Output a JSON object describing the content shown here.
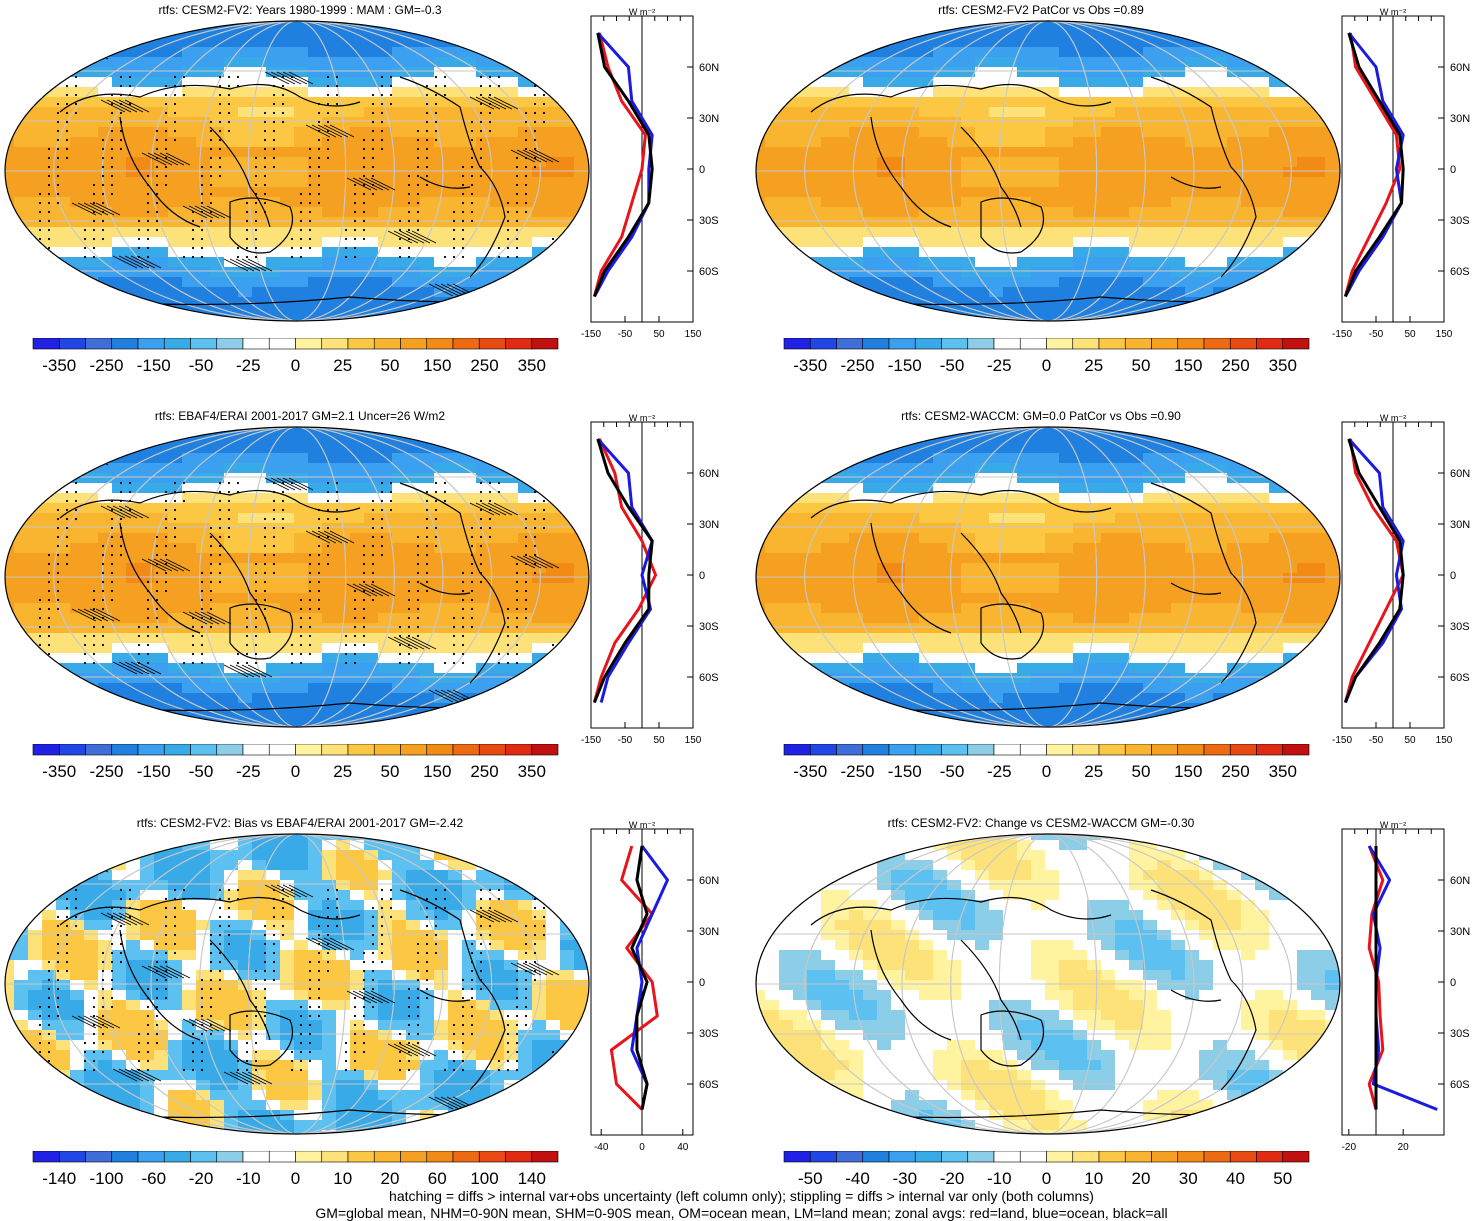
{
  "colors": {
    "red_line": "#e8141b",
    "blue_line": "#1a1ae0",
    "black_line": "#000000",
    "grat": "#c8c8c8"
  },
  "panels": [
    {
      "id": "p1",
      "title": "rtfs: CESM2-FV2: Years 1980-1999 : MAM : GM=-0.3",
      "cbar_labels": [
        "-350",
        "-250",
        "-150",
        "-50",
        "-25",
        "0",
        "25",
        "50",
        "150",
        "250",
        "350"
      ],
      "zonal_xticks": [
        "-150",
        "-50",
        "50",
        "150"
      ],
      "zonal_ylabels": [
        "60N",
        "30N",
        "0",
        "30S",
        "60S"
      ],
      "zonal_unit": "W m⁻²",
      "stipple": true,
      "hatch": true
    },
    {
      "id": "p2",
      "title": "rtfs: CESM2-FV2 PatCor vs Obs =0.89",
      "cbar_labels": [
        "-350",
        "-250",
        "-150",
        "-50",
        "-25",
        "0",
        "25",
        "50",
        "150",
        "250",
        "350"
      ],
      "zonal_xticks": [
        "-150",
        "-50",
        "50",
        "150"
      ],
      "zonal_ylabels": [
        "60N",
        "30N",
        "0",
        "30S",
        "60S"
      ],
      "zonal_unit": "W m⁻²",
      "stipple": false,
      "hatch": false
    },
    {
      "id": "p3",
      "title": "rtfs: EBAF4/ERAI 2001-2017 GM=2.1 Uncer=26 W/m2",
      "cbar_labels": [
        "-350",
        "-250",
        "-150",
        "-50",
        "-25",
        "0",
        "25",
        "50",
        "150",
        "250",
        "350"
      ],
      "zonal_xticks": [
        "-150",
        "-50",
        "50",
        "150"
      ],
      "zonal_ylabels": [
        "60N",
        "30N",
        "0",
        "30S",
        "60S"
      ],
      "zonal_unit": "W m⁻²",
      "stipple": true,
      "hatch": true
    },
    {
      "id": "p4",
      "title": "rtfs: CESM2-WACCM: GM=0.0 PatCor vs Obs =0.90",
      "cbar_labels": [
        "-350",
        "-250",
        "-150",
        "-50",
        "-25",
        "0",
        "25",
        "50",
        "150",
        "250",
        "350"
      ],
      "zonal_xticks": [
        "-150",
        "-50",
        "50",
        "150"
      ],
      "zonal_ylabels": [
        "60N",
        "30N",
        "0",
        "30S",
        "60S"
      ],
      "zonal_unit": "W m⁻²",
      "stipple": false,
      "hatch": false
    },
    {
      "id": "p5",
      "title": "rtfs: CESM2-FV2: Bias vs EBAF4/ERAI 2001-2017 GM=-2.42",
      "cbar_labels": [
        "-140",
        "-100",
        "-60",
        "-20",
        "-10",
        "0",
        "10",
        "20",
        "60",
        "100",
        "140"
      ],
      "zonal_xticks": [
        "-40",
        "0",
        "40"
      ],
      "zonal_ylabels": [
        "60N",
        "30N",
        "0",
        "30S",
        "60S"
      ],
      "zonal_unit": "W m⁻²",
      "stipple": true,
      "hatch": true
    },
    {
      "id": "p6",
      "title": "rtfs: CESM2-FV2: Change vs CESM2-WACCM GM=-0.30",
      "cbar_labels": [
        "-50",
        "-40",
        "-30",
        "-20",
        "-10",
        "0",
        "10",
        "20",
        "30",
        "40",
        "50"
      ],
      "zonal_xticks": [
        "-20",
        "20"
      ],
      "zonal_ylabels": [
        "60N",
        "30N",
        "0",
        "30S",
        "60S"
      ],
      "zonal_unit": "W m⁻²",
      "stipple": false,
      "hatch": false
    }
  ],
  "palette": [
    "#2121e6",
    "#2146e6",
    "#3f6ed8",
    "#1f80e0",
    "#3ba0f0",
    "#38aae8",
    "#5cc0f0",
    "#8ccde8",
    "#ffffff",
    "#ffffff",
    "#fff3a0",
    "#fde27a",
    "#fcc843",
    "#f9b430",
    "#f5a020",
    "#f28a16",
    "#ee6a12",
    "#e84a12",
    "#e02a14",
    "#c01010"
  ],
  "footer": {
    "line1": "hatching = diffs > internal var+obs uncertainty (left column only); stippling = diffs > internal var only (both columns)",
    "line2": "GM=global mean, NHM=0-90N mean, SHM=0-90S mean, OM=ocean mean, LM=land mean; zonal avgs: red=land, blue=ocean, black=all"
  },
  "chart_data": [
    {
      "type": "heatmap",
      "title": "rtfs: CESM2-FV2: Years 1980-1999 : MAM : GM=-0.3",
      "colorbar_levels": [
        -350,
        -250,
        -150,
        -50,
        -25,
        0,
        25,
        50,
        150,
        250,
        350
      ],
      "zonal_profile": {
        "xlim": [
          -150,
          150
        ],
        "lat": [
          80,
          60,
          40,
          20,
          0,
          -20,
          -40,
          -60,
          -75
        ],
        "all": [
          -130,
          -110,
          -40,
          20,
          30,
          20,
          -40,
          -110,
          -140
        ],
        "land": [
          -125,
          -100,
          -60,
          10,
          0,
          -30,
          -60,
          -120,
          -140
        ],
        "ocean": [
          -130,
          -40,
          -30,
          30,
          20,
          20,
          -30,
          -100,
          -140
        ]
      }
    },
    {
      "type": "heatmap",
      "title": "rtfs: CESM2-FV2 PatCor vs Obs =0.89",
      "colorbar_levels": [
        -350,
        -250,
        -150,
        -50,
        -25,
        0,
        25,
        50,
        150,
        250,
        350
      ],
      "zonal_profile": {
        "xlim": [
          -150,
          150
        ],
        "lat": [
          80,
          60,
          40,
          20,
          0,
          -20,
          -40,
          -60,
          -75
        ],
        "all": [
          -130,
          -100,
          -40,
          20,
          30,
          25,
          -40,
          -110,
          -140
        ],
        "land": [
          -125,
          -110,
          -50,
          10,
          20,
          -20,
          -70,
          -120,
          -140
        ],
        "ocean": [
          -130,
          -50,
          -30,
          30,
          10,
          25,
          -30,
          -100,
          -140
        ]
      }
    },
    {
      "type": "heatmap",
      "title": "rtfs: EBAF4/ERAI 2001-2017 GM=2.1 Uncer=26 W/m2",
      "colorbar_levels": [
        -350,
        -250,
        -150,
        -50,
        -25,
        0,
        25,
        50,
        150,
        250,
        350
      ],
      "zonal_profile": {
        "xlim": [
          -150,
          150
        ],
        "lat": [
          80,
          60,
          40,
          20,
          0,
          -20,
          -40,
          -60,
          -75
        ],
        "all": [
          -130,
          -100,
          -40,
          30,
          20,
          20,
          -50,
          -110,
          -140
        ],
        "land": [
          -125,
          -80,
          -60,
          0,
          40,
          -10,
          -80,
          -120,
          -140
        ],
        "ocean": [
          -130,
          -40,
          -30,
          30,
          0,
          25,
          -40,
          -100,
          -120
        ]
      }
    },
    {
      "type": "heatmap",
      "title": "rtfs: CESM2-WACCM: GM=0.0 PatCor vs Obs =0.90",
      "colorbar_levels": [
        -350,
        -250,
        -150,
        -50,
        -25,
        0,
        25,
        50,
        150,
        250,
        350
      ],
      "zonal_profile": {
        "xlim": [
          -150,
          150
        ],
        "lat": [
          80,
          60,
          40,
          20,
          0,
          -20,
          -40,
          -60,
          -75
        ],
        "all": [
          -130,
          -100,
          -40,
          20,
          30,
          20,
          -40,
          -110,
          -140
        ],
        "land": [
          -125,
          -110,
          -60,
          10,
          30,
          -20,
          -70,
          -120,
          -140
        ],
        "ocean": [
          -130,
          -40,
          -30,
          30,
          10,
          25,
          -30,
          -110,
          -140
        ]
      }
    },
    {
      "type": "heatmap",
      "title": "rtfs: CESM2-FV2: Bias vs EBAF4/ERAI 2001-2017 GM=-2.42",
      "colorbar_levels": [
        -140,
        -100,
        -60,
        -20,
        -10,
        0,
        10,
        20,
        60,
        100,
        140
      ],
      "zonal_profile": {
        "xlim": [
          -50,
          50
        ],
        "lat": [
          80,
          60,
          40,
          20,
          0,
          -20,
          -40,
          -60,
          -75
        ],
        "all": [
          0,
          -5,
          5,
          -10,
          5,
          -5,
          -5,
          5,
          0
        ],
        "land": [
          -10,
          -20,
          10,
          -15,
          10,
          15,
          -30,
          -25,
          0
        ],
        "ocean": [
          0,
          25,
          10,
          -5,
          0,
          -5,
          -10,
          5,
          0
        ]
      }
    },
    {
      "type": "heatmap",
      "title": "rtfs: CESM2-FV2: Change vs CESM2-WACCM GM=-0.30",
      "colorbar_levels": [
        -50,
        -40,
        -30,
        -20,
        -10,
        0,
        10,
        20,
        30,
        40,
        50
      ],
      "zonal_profile": {
        "xlim": [
          -25,
          50
        ],
        "lat": [
          80,
          60,
          40,
          20,
          0,
          -20,
          -40,
          -60,
          -75
        ],
        "all": [
          0,
          0,
          0,
          0,
          0,
          0,
          0,
          0,
          0
        ],
        "land": [
          -5,
          5,
          -3,
          -5,
          2,
          3,
          5,
          -5,
          0
        ],
        "ocean": [
          -5,
          10,
          -2,
          3,
          0,
          0,
          2,
          -2,
          45
        ]
      }
    }
  ]
}
